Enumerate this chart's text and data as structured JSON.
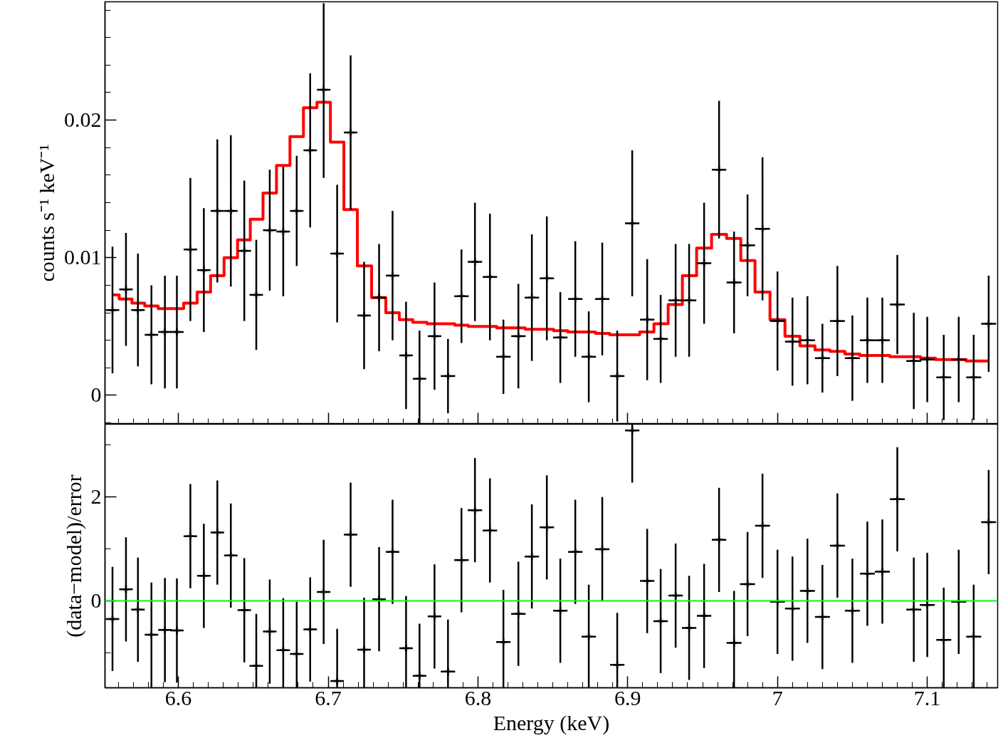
{
  "chart_data": [
    {
      "type": "scatter",
      "ylabel": "counts s⁻¹ keV⁻¹",
      "grid": false,
      "tick_labels": "y",
      "xlim": [
        6.551,
        7.147
      ],
      "xticks": [
        {
          "value": 6.56,
          "label": null
        },
        {
          "value": 6.57,
          "label": null
        },
        {
          "value": 6.58,
          "label": null
        },
        {
          "value": 6.59,
          "label": null
        },
        6.6,
        {
          "value": 6.61,
          "label": null
        },
        {
          "value": 6.62,
          "label": null
        },
        {
          "value": 6.63,
          "label": null
        },
        {
          "value": 6.64,
          "label": null
        },
        {
          "value": 6.65,
          "label": null
        },
        {
          "value": 6.66,
          "label": null
        },
        {
          "value": 6.67,
          "label": null
        },
        {
          "value": 6.68,
          "label": null
        },
        {
          "value": 6.69,
          "label": null
        },
        6.7,
        {
          "value": 6.71,
          "label": null
        },
        {
          "value": 6.72,
          "label": null
        },
        {
          "value": 6.73,
          "label": null
        },
        {
          "value": 6.74,
          "label": null
        },
        {
          "value": 6.75,
          "label": null
        },
        {
          "value": 6.76,
          "label": null
        },
        {
          "value": 6.77,
          "label": null
        },
        {
          "value": 6.78,
          "label": null
        },
        {
          "value": 6.79,
          "label": null
        },
        6.8,
        {
          "value": 6.81,
          "label": null
        },
        {
          "value": 6.82,
          "label": null
        },
        {
          "value": 6.83,
          "label": null
        },
        {
          "value": 6.84,
          "label": null
        },
        {
          "value": 6.85,
          "label": null
        },
        {
          "value": 6.86,
          "label": null
        },
        {
          "value": 6.87,
          "label": null
        },
        {
          "value": 6.88,
          "label": null
        },
        {
          "value": 6.89,
          "label": null
        },
        6.9,
        {
          "value": 6.91,
          "label": null
        },
        {
          "value": 6.92,
          "label": null
        },
        {
          "value": 6.93,
          "label": null
        },
        {
          "value": 6.94,
          "label": null
        },
        {
          "value": 6.95,
          "label": null
        },
        {
          "value": 6.96,
          "label": null
        },
        {
          "value": 6.97,
          "label": null
        },
        {
          "value": 6.98,
          "label": null
        },
        {
          "value": 6.99,
          "label": null
        },
        7,
        {
          "value": 7.01,
          "label": null
        },
        {
          "value": 7.02,
          "label": null
        },
        {
          "value": 7.03,
          "label": null
        },
        {
          "value": 7.04,
          "label": null
        },
        {
          "value": 7.05,
          "label": null
        },
        {
          "value": 7.06,
          "label": null
        },
        {
          "value": 7.07,
          "label": null
        },
        {
          "value": 7.08,
          "label": null
        },
        {
          "value": 7.09,
          "label": null
        },
        7.1,
        {
          "value": 7.11,
          "label": null
        },
        {
          "value": 7.12,
          "label": null
        },
        {
          "value": 7.13,
          "label": null
        },
        {
          "value": 7.14,
          "label": null
        }
      ],
      "ylim": [
        -0.0021,
        0.0286
      ],
      "yticks": [
        {
          "value": -0.002,
          "label": null
        },
        0,
        {
          "value": 0.002,
          "label": null
        },
        {
          "value": 0.004,
          "label": null
        },
        {
          "value": 0.006,
          "label": null
        },
        {
          "value": 0.008,
          "label": null
        },
        0.01,
        {
          "value": 0.012,
          "label": null
        },
        {
          "value": 0.014,
          "label": null
        },
        {
          "value": 0.016,
          "label": null
        },
        {
          "value": 0.018,
          "label": null
        },
        0.02,
        {
          "value": 0.022,
          "label": null
        },
        {
          "value": 0.024,
          "label": null
        },
        {
          "value": 0.026,
          "label": null
        },
        {
          "value": 0.028,
          "label": null
        }
      ],
      "x": [
        6.556,
        6.565,
        6.573,
        6.582,
        6.591,
        6.599,
        6.608,
        6.617,
        6.626,
        6.635,
        6.644,
        6.652,
        6.661,
        6.67,
        6.679,
        6.688,
        6.697,
        6.706,
        6.715,
        6.724,
        6.734,
        6.743,
        6.752,
        6.761,
        6.771,
        6.78,
        6.789,
        6.798,
        6.808,
        6.817,
        6.827,
        6.836,
        6.846,
        6.855,
        6.865,
        6.874,
        6.883,
        6.893,
        6.903,
        6.913,
        6.922,
        6.932,
        6.941,
        6.951,
        6.961,
        6.971,
        6.98,
        6.99,
        7.0,
        7.01,
        7.02,
        7.03,
        7.04,
        7.05,
        7.06,
        7.07,
        7.08,
        7.091,
        7.1,
        7.111,
        7.121,
        7.131,
        7.141
      ],
      "series": [
        {
          "color": "#000000",
          "marker": "cross",
          "values": [
            0.0062,
            0.0077,
            0.0062,
            0.0044,
            0.0046,
            0.0046,
            0.0106,
            0.0091,
            0.0134,
            0.0134,
            0.0105,
            0.0073,
            0.012,
            0.0119,
            0.0134,
            0.0178,
            0.0222,
            0.0103,
            0.0191,
            0.0058,
            0.0071,
            0.0087,
            0.0029,
            0.0012,
            0.0043,
            0.0014,
            0.0072,
            0.0097,
            0.0086,
            0.0028,
            0.0043,
            0.0071,
            0.0085,
            0.0042,
            0.007,
            0.0028,
            0.007,
            0.0014,
            0.0125,
            0.0055,
            0.0041,
            0.0069,
            0.0069,
            0.0096,
            0.0164,
            0.0082,
            0.0109,
            0.0121,
            0.0054,
            0.0039,
            0.004,
            0.0027,
            0.0054,
            0.0027,
            0.004,
            0.004,
            0.0066,
            0.0025,
            0.0026,
            0.0013,
            0.0026,
            0.0013,
            0.0052
          ],
          "errors": [
            0.0046,
            0.0041,
            0.0041,
            0.0036,
            0.0041,
            0.0041,
            0.0052,
            0.0045,
            0.0052,
            0.0055,
            0.0051,
            0.004,
            0.0044,
            0.0047,
            0.004,
            0.0056,
            [
              0.0158,
              0.0285
            ],
            0.005,
            0.0056,
            0.0039,
            0.0039,
            0.0047,
            0.0039,
            [
              -0.0021,
              0.0047
            ],
            0.0039,
            0.0027,
            0.0034,
            0.0043,
            0.0046,
            0.0027,
            0.0038,
            0.0046,
            0.0045,
            0.0033,
            0.0042,
            0.0033,
            0.0041,
            0.0033,
            0.0053,
            0.0044,
            0.0032,
            0.0041,
            0.0041,
            0.0044,
            0.005,
            0.0037,
            0.0037,
            0.0052,
            0.0036,
            0.0032,
            0.0032,
            0.0025,
            0.004,
            0.0031,
            0.0031,
            0.0031,
            0.0036,
            0.0035,
            0.0031,
            0.0031,
            0.0031,
            0.0031,
            0.0035
          ],
          "xerrors": [
            0.0045,
            0.0045,
            0.0045,
            0.0045,
            0.0045,
            0.0045,
            0.0045,
            0.0045,
            0.0045,
            0.0045,
            0.0045,
            0.0045,
            0.0045,
            0.0045,
            0.0045,
            0.0045,
            0.0045,
            0.0045,
            0.0045,
            0.0045,
            0.0045,
            0.0045,
            0.0045,
            0.0045,
            0.0045,
            0.0048,
            0.0048,
            0.0048,
            0.0048,
            0.0048,
            0.0048,
            0.0048,
            0.0048,
            0.0048,
            0.0048,
            0.0048,
            0.0048,
            0.0048,
            0.0048,
            0.0048,
            0.0048,
            0.0048,
            0.0048,
            0.0048,
            0.0048,
            0.005,
            0.005,
            0.005,
            0.005,
            0.005,
            0.005,
            0.005,
            0.005,
            0.005,
            0.005,
            0.005,
            0.005,
            0.005,
            0.005,
            0.005,
            0.005,
            0.005,
            0.005
          ]
        },
        {
          "type": "step",
          "color": "#ff0000",
          "values": [
            0.0073,
            0.007,
            0.0067,
            0.0065,
            0.0063,
            0.0063,
            0.0067,
            0.0075,
            0.0087,
            0.01,
            0.0113,
            0.0128,
            0.0147,
            0.0167,
            0.0188,
            0.0209,
            0.0213,
            0.0184,
            0.0135,
            0.0094,
            0.0071,
            0.006,
            0.0055,
            0.0053,
            0.0052,
            0.0052,
            0.0051,
            0.005,
            0.005,
            0.0049,
            0.0049,
            0.0048,
            0.0048,
            0.0047,
            0.0046,
            0.0046,
            0.0045,
            0.0044,
            0.0044,
            0.0046,
            0.0052,
            0.0066,
            0.0087,
            0.0107,
            0.0117,
            0.0114,
            0.0098,
            0.0075,
            0.0055,
            0.0043,
            0.0036,
            0.0033,
            0.0032,
            0.003,
            0.0029,
            0.0029,
            0.0028,
            0.0028,
            0.0027,
            0.0026,
            0.0026,
            0.0025,
            0.0025
          ]
        }
      ]
    },
    {
      "type": "scatter",
      "xlabel": "Energy (keV)",
      "ylabel": "(data−model)/error",
      "grid": false,
      "xlim": [
        6.551,
        7.147
      ],
      "xticks": [
        {
          "value": 6.56,
          "label": null
        },
        {
          "value": 6.57,
          "label": null
        },
        {
          "value": 6.58,
          "label": null
        },
        {
          "value": 6.59,
          "label": null
        },
        6.6,
        {
          "value": 6.61,
          "label": null
        },
        {
          "value": 6.62,
          "label": null
        },
        {
          "value": 6.63,
          "label": null
        },
        {
          "value": 6.64,
          "label": null
        },
        {
          "value": 6.65,
          "label": null
        },
        {
          "value": 6.66,
          "label": null
        },
        {
          "value": 6.67,
          "label": null
        },
        {
          "value": 6.68,
          "label": null
        },
        {
          "value": 6.69,
          "label": null
        },
        6.7,
        {
          "value": 6.71,
          "label": null
        },
        {
          "value": 6.72,
          "label": null
        },
        {
          "value": 6.73,
          "label": null
        },
        {
          "value": 6.74,
          "label": null
        },
        {
          "value": 6.75,
          "label": null
        },
        {
          "value": 6.76,
          "label": null
        },
        {
          "value": 6.77,
          "label": null
        },
        {
          "value": 6.78,
          "label": null
        },
        {
          "value": 6.79,
          "label": null
        },
        6.8,
        {
          "value": 6.81,
          "label": null
        },
        {
          "value": 6.82,
          "label": null
        },
        {
          "value": 6.83,
          "label": null
        },
        {
          "value": 6.84,
          "label": null
        },
        {
          "value": 6.85,
          "label": null
        },
        {
          "value": 6.86,
          "label": null
        },
        {
          "value": 6.87,
          "label": null
        },
        {
          "value": 6.88,
          "label": null
        },
        {
          "value": 6.89,
          "label": null
        },
        6.9,
        {
          "value": 6.91,
          "label": null
        },
        {
          "value": 6.92,
          "label": null
        },
        {
          "value": 6.93,
          "label": null
        },
        {
          "value": 6.94,
          "label": null
        },
        {
          "value": 6.95,
          "label": null
        },
        {
          "value": 6.96,
          "label": null
        },
        {
          "value": 6.97,
          "label": null
        },
        {
          "value": 6.98,
          "label": null
        },
        {
          "value": 6.99,
          "label": null
        },
        7,
        {
          "value": 7.01,
          "label": null
        },
        {
          "value": 7.02,
          "label": null
        },
        {
          "value": 7.03,
          "label": null
        },
        {
          "value": 7.04,
          "label": null
        },
        {
          "value": 7.05,
          "label": null
        },
        {
          "value": 7.06,
          "label": null
        },
        {
          "value": 7.07,
          "label": null
        },
        {
          "value": 7.08,
          "label": null
        },
        {
          "value": 7.09,
          "label": null
        },
        7.1,
        {
          "value": 7.11,
          "label": null
        },
        {
          "value": 7.12,
          "label": null
        },
        {
          "value": 7.13,
          "label": null
        },
        {
          "value": 7.14,
          "label": null
        }
      ],
      "ylim": [
        -1.67,
        3.39
      ],
      "yticks": [
        {
          "value": -1,
          "label": null
        },
        0,
        {
          "value": 1,
          "label": null
        },
        2,
        {
          "value": 3,
          "label": null
        }
      ],
      "ref_lines": [
        {
          "axis": "y",
          "value": 0,
          "color": "#00ff00"
        }
      ],
      "x": [
        6.556,
        6.565,
        6.573,
        6.582,
        6.591,
        6.599,
        6.608,
        6.617,
        6.626,
        6.635,
        6.644,
        6.652,
        6.661,
        6.67,
        6.679,
        6.688,
        6.697,
        6.706,
        6.715,
        6.724,
        6.734,
        6.743,
        6.752,
        6.761,
        6.771,
        6.78,
        6.789,
        6.798,
        6.808,
        6.817,
        6.827,
        6.836,
        6.846,
        6.855,
        6.865,
        6.874,
        6.883,
        6.893,
        6.903,
        6.913,
        6.922,
        6.932,
        6.941,
        6.951,
        6.961,
        6.971,
        6.98,
        6.99,
        7.0,
        7.01,
        7.02,
        7.03,
        7.04,
        7.05,
        7.06,
        7.07,
        7.08,
        7.091,
        7.1,
        7.111,
        7.121,
        7.131,
        7.141
      ],
      "series": [
        {
          "color": "#000000",
          "marker": "cross",
          "values": [
            -0.35,
            0.22,
            -0.17,
            -0.65,
            -0.56,
            -0.57,
            1.24,
            0.48,
            1.31,
            0.87,
            -0.18,
            -1.25,
            -0.59,
            -0.95,
            -1.02,
            -0.55,
            0.17,
            -1.54,
            1.27,
            -0.94,
            0.03,
            0.94,
            -0.91,
            -1.44,
            -0.3,
            -1.36,
            0.78,
            1.74,
            1.35,
            -0.79,
            -0.25,
            0.85,
            1.41,
            -0.19,
            0.94,
            -0.69,
            0.99,
            -1.23,
            3.27,
            0.38,
            -0.39,
            0.1,
            -0.52,
            -0.29,
            1.17,
            -0.81,
            0.32,
            1.44,
            -0.02,
            -0.15,
            0.19,
            -0.31,
            1.06,
            -0.19,
            0.52,
            0.56,
            1.95,
            -0.17,
            -0.08,
            -0.75,
            -0.02,
            -0.69,
            1.51
          ],
          "errors": [
            1,
            1,
            1,
            [
              -1.67,
              0.35
            ],
            1,
            1,
            1,
            1,
            1,
            1,
            1,
            [
              -1.67,
              -0.25
            ],
            1,
            [
              -1.67,
              0.05
            ],
            [
              -1.67,
              -0.02
            ],
            1,
            1,
            [
              -1.67,
              -0.54
            ],
            1,
            [
              -1.67,
              0.06
            ],
            1,
            1,
            [
              -1.67,
              0.09
            ],
            [
              -1.67,
              -0.44
            ],
            1,
            [
              -1.67,
              -0.36
            ],
            1,
            1,
            1,
            [
              -1.67,
              0.21
            ],
            1,
            1,
            1,
            1,
            1,
            [
              -1.67,
              0.31
            ],
            1,
            [
              -1.67,
              -0.23
            ],
            [
              2.27,
              3.39
            ],
            1,
            1,
            1,
            1,
            1,
            1,
            [
              -1.67,
              0.19
            ],
            1,
            1,
            1,
            1,
            1,
            1,
            1,
            1,
            1,
            1,
            1,
            1,
            1,
            [
              -1.67,
              0.25
            ],
            1,
            [
              -1.67,
              0.31
            ],
            1
          ],
          "xerrors": [
            0.0045,
            0.0045,
            0.0045,
            0.0045,
            0.0045,
            0.0045,
            0.0045,
            0.0045,
            0.0045,
            0.0045,
            0.0045,
            0.0045,
            0.0045,
            0.0045,
            0.0045,
            0.0045,
            0.0045,
            0.0045,
            0.0045,
            0.0045,
            0.0045,
            0.0045,
            0.0045,
            0.0045,
            0.0045,
            0.0048,
            0.0048,
            0.0048,
            0.0048,
            0.0048,
            0.0048,
            0.0048,
            0.0048,
            0.0048,
            0.0048,
            0.0048,
            0.0048,
            0.0048,
            0.0048,
            0.0048,
            0.0048,
            0.0048,
            0.0048,
            0.0048,
            0.0048,
            0.005,
            0.005,
            0.005,
            0.005,
            0.005,
            0.005,
            0.005,
            0.005,
            0.005,
            0.005,
            0.005,
            0.005,
            0.005,
            0.005,
            0.005,
            0.005,
            0.005,
            0.005
          ]
        }
      ]
    }
  ]
}
